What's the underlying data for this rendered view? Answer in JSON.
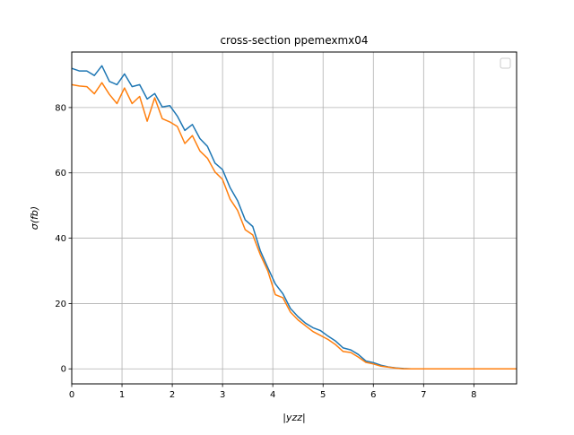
{
  "chart_data": {
    "type": "line",
    "title": "cross-section ppemexmx04",
    "xlabel": "|yzz|",
    "ylabel": "σ(fb)",
    "xlim": [
      0,
      8.85
    ],
    "ylim": [
      -4.6,
      97
    ],
    "xticks": [
      0,
      1,
      2,
      3,
      4,
      5,
      6,
      7,
      8
    ],
    "yticks": [
      0,
      20,
      40,
      60,
      80
    ],
    "grid": true,
    "legend": "top-right",
    "legend_entries": [],
    "series": [
      {
        "color": "#1f77b4",
        "x": [
          0,
          0.15,
          0.3,
          0.45,
          0.6,
          0.75,
          0.9,
          1.05,
          1.2,
          1.35,
          1.5,
          1.65,
          1.8,
          1.95,
          2.1,
          2.25,
          2.4,
          2.55,
          2.7,
          2.85,
          3.0,
          3.15,
          3.3,
          3.45,
          3.6,
          3.75,
          3.9,
          4.05,
          4.2,
          4.35,
          4.5,
          4.65,
          4.8,
          4.95,
          5.1,
          5.25,
          5.4,
          5.55,
          5.7,
          5.85,
          6.0,
          6.15,
          6.3,
          6.45,
          6.6,
          6.75,
          6.9,
          7.05,
          7.2,
          7.35,
          7.5,
          7.65,
          7.8,
          7.95,
          8.1,
          8.25,
          8.4,
          8.55,
          8.7,
          8.85
        ],
        "y": [
          92,
          91.2,
          91.2,
          89.8,
          92.8,
          88,
          87,
          90.3,
          86.4,
          87,
          82.6,
          84.3,
          80.2,
          80.6,
          77.4,
          73,
          74.8,
          70.5,
          68.1,
          63,
          61,
          55.5,
          51.5,
          45.6,
          43.6,
          36.2,
          31,
          26,
          23,
          18.5,
          16,
          14,
          12.6,
          11.7,
          10,
          8.5,
          6.4,
          5.8,
          4.4,
          2.4,
          1.9,
          1.1,
          0.6,
          0.3,
          0.1,
          0,
          0,
          0,
          0,
          0,
          0,
          0,
          0,
          0,
          0,
          0,
          0,
          0,
          0,
          0
        ]
      },
      {
        "color": "#ff7f0e",
        "x": [
          0,
          0.15,
          0.3,
          0.45,
          0.6,
          0.75,
          0.9,
          1.05,
          1.2,
          1.35,
          1.5,
          1.65,
          1.8,
          1.95,
          2.1,
          2.25,
          2.4,
          2.55,
          2.7,
          2.85,
          3.0,
          3.15,
          3.3,
          3.45,
          3.6,
          3.75,
          3.9,
          4.05,
          4.2,
          4.35,
          4.5,
          4.65,
          4.8,
          4.95,
          5.1,
          5.25,
          5.4,
          5.55,
          5.7,
          5.85,
          6.0,
          6.15,
          6.3,
          6.45,
          6.6,
          6.75,
          6.9,
          7.05,
          7.2,
          7.35,
          7.5,
          7.65,
          7.8,
          7.95,
          8.1,
          8.25,
          8.4,
          8.55,
          8.7,
          8.85
        ],
        "y": [
          87,
          86.6,
          86.4,
          84.2,
          87.6,
          84,
          81.2,
          86,
          81.2,
          83.4,
          75.8,
          83,
          76.6,
          75.6,
          74.2,
          69,
          71.4,
          66.7,
          64.5,
          60.3,
          58,
          52,
          48.5,
          42.6,
          41,
          35,
          30,
          22.7,
          21.8,
          17.4,
          15,
          13.2,
          11.4,
          10.2,
          9,
          7.4,
          5.3,
          5,
          3.6,
          2,
          1.5,
          0.8,
          0.5,
          0.2,
          0,
          0,
          0,
          0,
          0,
          0,
          0,
          0,
          0,
          0,
          0,
          0,
          0,
          0,
          0,
          0
        ]
      }
    ]
  }
}
